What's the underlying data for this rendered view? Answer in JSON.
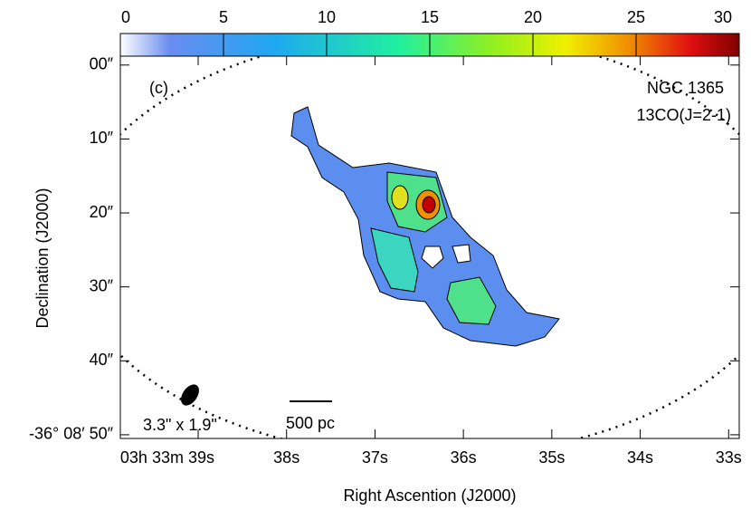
{
  "chart_data": {
    "type": "image",
    "xlabel": "Right Ascention (J2000)",
    "ylabel": "Declination (J2000)",
    "xlim": [
      39.88,
      32.88
    ],
    "xticks": [
      {
        "value": 39,
        "label": "03h 33m 39s"
      },
      {
        "value": 38,
        "label": "38s"
      },
      {
        "value": 37,
        "label": "37s"
      },
      {
        "value": 36,
        "label": "36s"
      },
      {
        "value": 35,
        "label": "35s"
      },
      {
        "value": 34,
        "label": "34s"
      },
      {
        "value": 33,
        "label": "33s"
      }
    ],
    "ylim": [
      -1.2,
      50.5
    ],
    "y_inverted": true,
    "yticks": [
      {
        "value": 0,
        "label": "00″"
      },
      {
        "value": 10,
        "label": "10″"
      },
      {
        "value": 20,
        "label": "20″"
      },
      {
        "value": 30,
        "label": "30″"
      },
      {
        "value": 40,
        "label": "40″"
      },
      {
        "value": 50,
        "label": "-36° 08′ 50″"
      }
    ],
    "clim": [
      0,
      30
    ],
    "cticks": [
      0,
      5,
      10,
      15,
      20,
      25,
      30
    ],
    "annotations": [
      "(c)",
      "NGC 1365",
      "13CO(J=2-1)",
      "3.3\" x 1.9\"",
      "500 pc"
    ]
  }
}
